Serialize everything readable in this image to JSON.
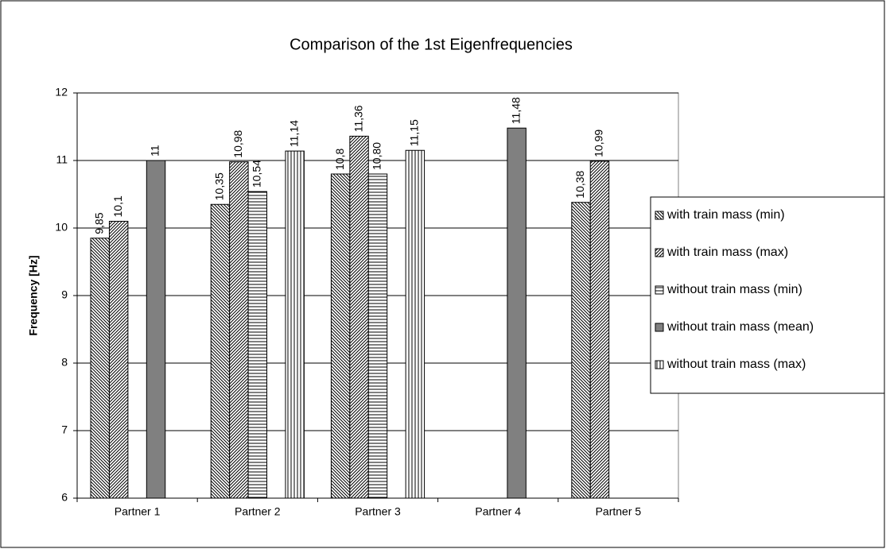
{
  "chart_data": {
    "type": "bar",
    "title": "Comparison of the 1st Eigenfrequencies",
    "y_label": "Frequency [Hz]",
    "categories": [
      "Partner 1",
      "Partner 2",
      "Partner 3",
      "Partner 4",
      "Partner 5"
    ],
    "series": [
      {
        "name": "with train mass (min)",
        "color": "#000000",
        "hatch": "down",
        "values": [
          9.85,
          10.35,
          10.8,
          null,
          10.38
        ],
        "value_labels": [
          "9,85",
          "10,35",
          "10,8",
          null,
          "10,38"
        ]
      },
      {
        "name": "with train mass (max)",
        "color": "#000000",
        "hatch": "up",
        "values": [
          10.1,
          10.98,
          11.36,
          null,
          10.99
        ],
        "value_labels": [
          "10,1",
          "10,98",
          "11,36",
          null,
          "10,99"
        ]
      },
      {
        "name": "without train mass (min)",
        "color": "#000000",
        "hatch": "horizontal",
        "values": [
          null,
          10.54,
          10.8,
          null,
          null
        ],
        "value_labels": [
          null,
          "10,54",
          "10,80",
          null,
          null
        ]
      },
      {
        "name": "without train mass (mean)",
        "color": "#808080",
        "hatch": "none",
        "values": [
          11,
          null,
          null,
          11.48,
          null
        ],
        "value_labels": [
          "11",
          null,
          null,
          "11,48",
          null
        ]
      },
      {
        "name": "without train mass (max)",
        "color": "#000000",
        "hatch": "vertical",
        "values": [
          null,
          11.14,
          11.15,
          null,
          null
        ],
        "value_labels": [
          null,
          "11,14",
          "11,15",
          null,
          null
        ]
      }
    ],
    "ylim": [
      6,
      12
    ],
    "yticks": [
      6,
      7,
      8,
      9,
      10,
      11,
      12
    ],
    "grid": true,
    "legend": "right"
  }
}
